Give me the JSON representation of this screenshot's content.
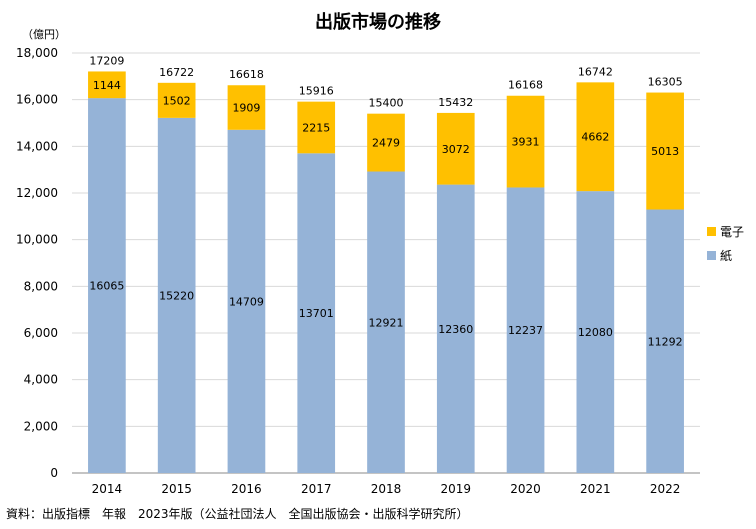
{
  "source_note": "資料：出版指標　年報　2023年版（公益社団法人　全国出版協会・出版科学研究所）",
  "chart_data": {
    "type": "bar",
    "stacked": true,
    "title": "出版市場の推移",
    "unit_label": "（億円）",
    "xlabel": "",
    "ylabel": "",
    "ylim": [
      0,
      18000
    ],
    "y_ticks": [
      0,
      2000,
      4000,
      6000,
      8000,
      10000,
      12000,
      14000,
      16000,
      18000
    ],
    "y_tick_labels": [
      "0",
      "2,000",
      "4,000",
      "6,000",
      "8,000",
      "10,000",
      "12,000",
      "14,000",
      "16,000",
      "18,000"
    ],
    "grid": true,
    "legend_position": "right",
    "categories": [
      "2014",
      "2015",
      "2016",
      "2017",
      "2018",
      "2019",
      "2020",
      "2021",
      "2022"
    ],
    "series": [
      {
        "name": "紙",
        "color": "#95b3d7",
        "values": [
          16065,
          15220,
          14709,
          13701,
          12921,
          12360,
          12237,
          12080,
          11292
        ]
      },
      {
        "name": "電子",
        "color": "#ffc000",
        "values": [
          1144,
          1502,
          1909,
          2215,
          2479,
          3072,
          3931,
          4662,
          5013
        ]
      }
    ],
    "totals": [
      17209,
      16722,
      16618,
      15916,
      15400,
      15432,
      16168,
      16742,
      16305
    ],
    "legend_order": [
      "電子",
      "紙"
    ]
  }
}
